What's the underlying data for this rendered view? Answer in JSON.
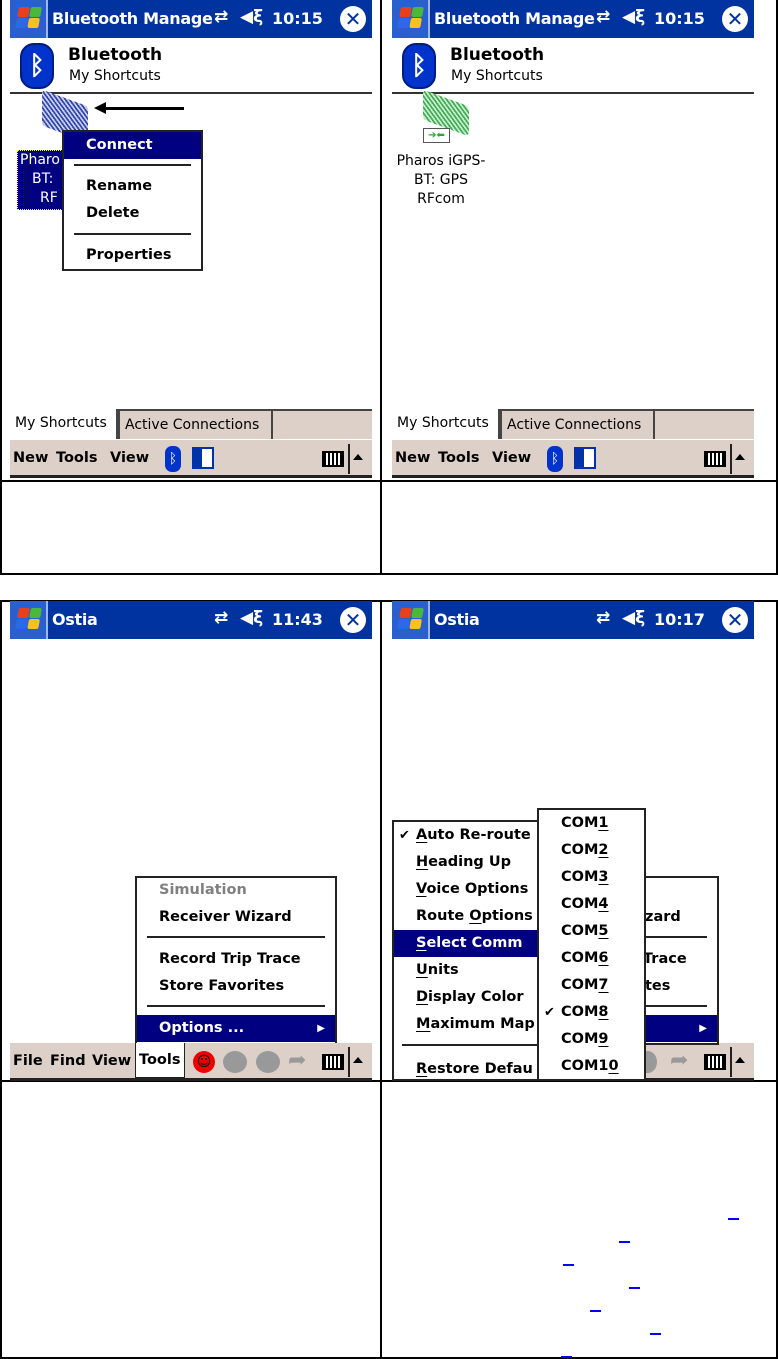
{
  "colors": {
    "titlebar": "#0033a0",
    "taskbar": "#ddd0c8",
    "highlight": "#000080",
    "disabled": "#808080"
  },
  "screens": [
    {
      "title": "Bluetooth Manage",
      "time": "10:15",
      "header_title": "Bluetooth",
      "header_subtitle": "My Shortcuts",
      "shortcut_label": [
        "Pharo",
        "BT:",
        "RF"
      ],
      "context_menu": [
        "Connect",
        "Rename",
        "Delete",
        "Properties"
      ],
      "tabs": [
        "My Shortcuts",
        "Active Connections"
      ],
      "menubar": [
        "New",
        "Tools",
        "View"
      ]
    },
    {
      "title": "Bluetooth Manage",
      "time": "10:15",
      "header_title": "Bluetooth",
      "header_subtitle": "My Shortcuts",
      "shortcut_label": [
        "Pharos iGPS-",
        "BT: GPS",
        "RFcom"
      ],
      "tabs": [
        "My Shortcuts",
        "Active Connections"
      ],
      "menubar": [
        "New",
        "Tools",
        "View"
      ]
    },
    {
      "title": "Ostia",
      "time": "11:43",
      "tools_menu": [
        "Simulation",
        "Receiver Wizard",
        "Record Trip Trace",
        "Store Favorites",
        "Options ..."
      ],
      "menubar": [
        "File",
        "Find",
        "View",
        "Tools"
      ]
    },
    {
      "title": "Ostia",
      "time": "10:17",
      "tools_menu_visible": [
        "zard",
        "Trace",
        "tes"
      ],
      "options_menu": [
        {
          "pre": "",
          "key": "A",
          "post": "uto Re-route",
          "checked": true
        },
        {
          "pre": "",
          "key": "H",
          "post": "eading Up"
        },
        {
          "pre": "",
          "key": "V",
          "post": "oice Options"
        },
        {
          "pre": "Route ",
          "key": "O",
          "post": "ptions"
        },
        {
          "pre": "",
          "key": "S",
          "post": "elect Comm",
          "highlighted": true
        },
        {
          "pre": "",
          "key": "U",
          "post": "nits"
        },
        {
          "pre": "",
          "key": "D",
          "post": "isplay Color"
        },
        {
          "pre": "",
          "key": "M",
          "post": "aximum Map"
        },
        {
          "pre": "",
          "key": "R",
          "post": "estore Defau"
        }
      ],
      "com_menu": [
        {
          "pre": "COM",
          "key": "1",
          "post": ""
        },
        {
          "pre": "COM",
          "key": "2",
          "post": ""
        },
        {
          "pre": "COM",
          "key": "3",
          "post": ""
        },
        {
          "pre": "COM",
          "key": "4",
          "post": ""
        },
        {
          "pre": "COM",
          "key": "5",
          "post": ""
        },
        {
          "pre": "COM",
          "key": "6",
          "post": ""
        },
        {
          "pre": "COM",
          "key": "7",
          "post": ""
        },
        {
          "pre": "COM",
          "key": "8",
          "post": "",
          "checked": true
        },
        {
          "pre": "COM",
          "key": "9",
          "post": ""
        },
        {
          "pre": "COM1",
          "key": "0",
          "post": ""
        }
      ]
    }
  ]
}
